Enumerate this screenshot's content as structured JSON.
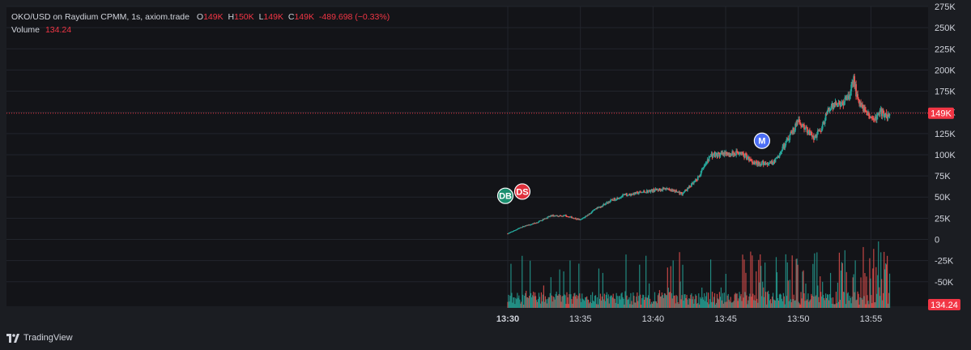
{
  "legend": {
    "title": "OKO/USD on Raydium CPMM, 1s, axiom.trade",
    "o_label": "O",
    "o_value": "149K",
    "h_label": "H",
    "h_value": "150K",
    "l_label": "L",
    "l_value": "149K",
    "c_label": "C",
    "c_value": "149K",
    "change": "-489.698 (−0.33%)",
    "volume_label": "Volume",
    "volume_value": "134.24"
  },
  "price_tag": "149K",
  "volume_tag": "134.24",
  "brand": "TradingView",
  "colors": {
    "up": "#26a69a",
    "down": "#ef5350",
    "background": "#131418",
    "frame": "#1b1d22",
    "grid": "#22252c",
    "axis_text": "#d1d4dc",
    "price_line": "#f23645",
    "marker_buy": "#1b8f6f",
    "marker_sell": "#e0303c",
    "marker_migrate": "#4c6ef5"
  },
  "markers": [
    {
      "label": "DB",
      "time": "13:29:50",
      "value": 40000,
      "color_key": "marker_buy"
    },
    {
      "label": "DS",
      "time": "13:31:00",
      "value": 45000,
      "color_key": "marker_sell"
    },
    {
      "label": "M",
      "time": "13:47:30",
      "value": 105000,
      "color_key": "marker_migrate"
    }
  ],
  "chart_data": {
    "type": "candlestick",
    "title": "OKO/USD on Raydium CPMM, 1s, axiom.trade",
    "x_ticks": [
      "13:30",
      "13:35",
      "13:40",
      "13:45",
      "13:50",
      "13:55"
    ],
    "x_tick_minutes": [
      0,
      5,
      10,
      15,
      20,
      25
    ],
    "y_ticks": [
      "275K",
      "250K",
      "225K",
      "200K",
      "175K",
      "150K",
      "125K",
      "100K",
      "75K",
      "50K",
      "25K",
      "0",
      "-25K",
      "-50K"
    ],
    "y_tick_values": [
      275000,
      250000,
      225000,
      200000,
      175000,
      150000,
      125000,
      100000,
      75000,
      50000,
      25000,
      0,
      -25000,
      -50000
    ],
    "ylim": [
      -75000,
      275000
    ],
    "last_price": 149000,
    "price_path": {
      "minutes": [
        0,
        1,
        2,
        3,
        4,
        5,
        6,
        7,
        8,
        9,
        10,
        11,
        12,
        13,
        14,
        15,
        16,
        17,
        17.6,
        18,
        18.5,
        19,
        20,
        20.5,
        21,
        21.5,
        22,
        22.6,
        23,
        23.5,
        23.8,
        24,
        24.3,
        24.5,
        25,
        25.2,
        25.5,
        25.8,
        26,
        26.3
      ],
      "close": [
        7000,
        15000,
        20000,
        28000,
        28000,
        23000,
        35000,
        45000,
        52000,
        55000,
        58000,
        60000,
        54000,
        70000,
        100000,
        100000,
        103000,
        90000,
        90000,
        88000,
        95000,
        110000,
        140000,
        132000,
        120000,
        127000,
        150000,
        160000,
        160000,
        168000,
        190000,
        172000,
        160000,
        155000,
        145000,
        140000,
        150000,
        150000,
        145000,
        149000
      ]
    },
    "volume": {
      "ylim": [
        0,
        800
      ],
      "description_values": [
        134.24
      ],
      "last_value": 134.24
    },
    "x_range_minutes": [
      -0.5,
      26.6
    ]
  }
}
